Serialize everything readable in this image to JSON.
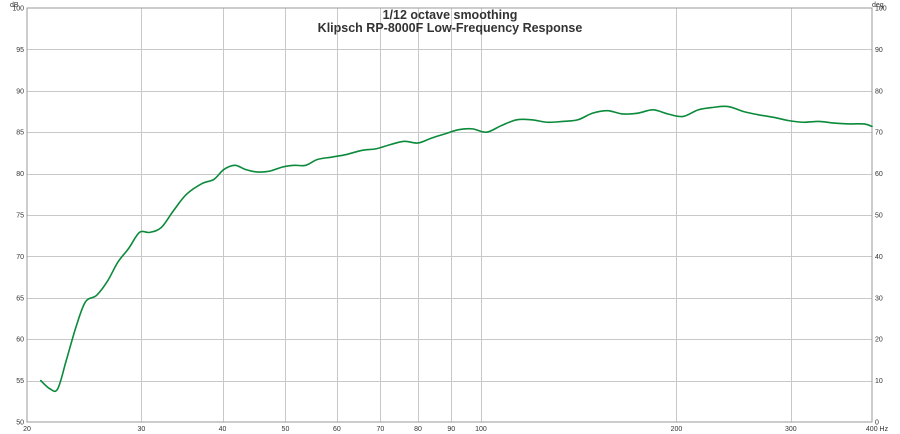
{
  "chart_data": {
    "type": "line",
    "title": "1/12 octave smoothing",
    "subtitle": "Klipsch RP-8000F Low-Frequency Response",
    "x_unit": "Hz",
    "y_unit_left": "dB",
    "y_unit_right": "deg",
    "xscale": "log",
    "xlim": [
      20,
      400
    ],
    "ylim": [
      50,
      100
    ],
    "y2lim": [
      0,
      100
    ],
    "grid": true,
    "x_ticks": [
      20,
      30,
      40,
      50,
      60,
      70,
      80,
      90,
      100,
      200,
      300,
      400
    ],
    "x_tick_labels": [
      "20",
      "30",
      "40",
      "50",
      "60",
      "70",
      "80",
      "90",
      "100",
      "200",
      "300",
      "400 Hz"
    ],
    "y_ticks": [
      50,
      55,
      60,
      65,
      70,
      75,
      80,
      85,
      90,
      95,
      100
    ],
    "y_tick_labels": [
      "50",
      "55",
      "60",
      "65",
      "70",
      "75",
      "80",
      "85",
      "90",
      "95",
      "100"
    ],
    "y2_ticks": [
      0,
      10,
      20,
      30,
      40,
      50,
      60,
      70,
      80,
      90,
      100
    ],
    "y2_tick_labels": [
      "0",
      "10",
      "20",
      "30",
      "40",
      "50",
      "60",
      "70",
      "80",
      "90",
      "100"
    ],
    "series": [
      {
        "color": "#0a8a3a",
        "x": [
          21,
          21.7,
          22.3,
          23,
          23.8,
          24.6,
          25.6,
          26.6,
          27.6,
          28.7,
          29.8,
          30.9,
          32.2,
          33.6,
          35.2,
          37.2,
          38.8,
          40.2,
          41.8,
          43.4,
          45.2,
          47.3,
          49.5,
          51.6,
          53.7,
          56.0,
          59.0,
          62.0,
          65.5,
          69.0,
          72.5,
          76.2,
          80.0,
          84.0,
          88.0,
          92.4,
          97.0,
          102.0,
          107.5,
          113.5,
          119.7,
          126.5,
          133.5,
          141.0,
          148.6,
          156.7,
          165.3,
          174.4,
          184.0,
          194.1,
          204.7,
          216.0,
          227.8,
          240.3,
          253.5,
          267.5,
          282.2,
          297.7,
          314.0,
          331.3,
          349.5,
          368.7,
          389.0,
          400.0
        ],
        "y": [
          55.0,
          54.0,
          54.0,
          57.5,
          61.5,
          64.5,
          65.3,
          67.0,
          69.3,
          71.0,
          72.9,
          72.9,
          73.5,
          75.5,
          77.5,
          78.8,
          79.3,
          80.5,
          81.0,
          80.5,
          80.2,
          80.3,
          80.8,
          81.0,
          81.0,
          81.7,
          82.0,
          82.3,
          82.8,
          83.0,
          83.5,
          83.9,
          83.7,
          84.3,
          84.8,
          85.3,
          85.4,
          85.0,
          85.8,
          86.5,
          86.5,
          86.2,
          86.3,
          86.5,
          87.3,
          87.6,
          87.2,
          87.3,
          87.7,
          87.2,
          86.9,
          87.7,
          88.0,
          88.1,
          87.5,
          87.1,
          86.8,
          86.4,
          86.2,
          86.3,
          86.1,
          86.0,
          86.0,
          85.7
        ]
      }
    ]
  }
}
